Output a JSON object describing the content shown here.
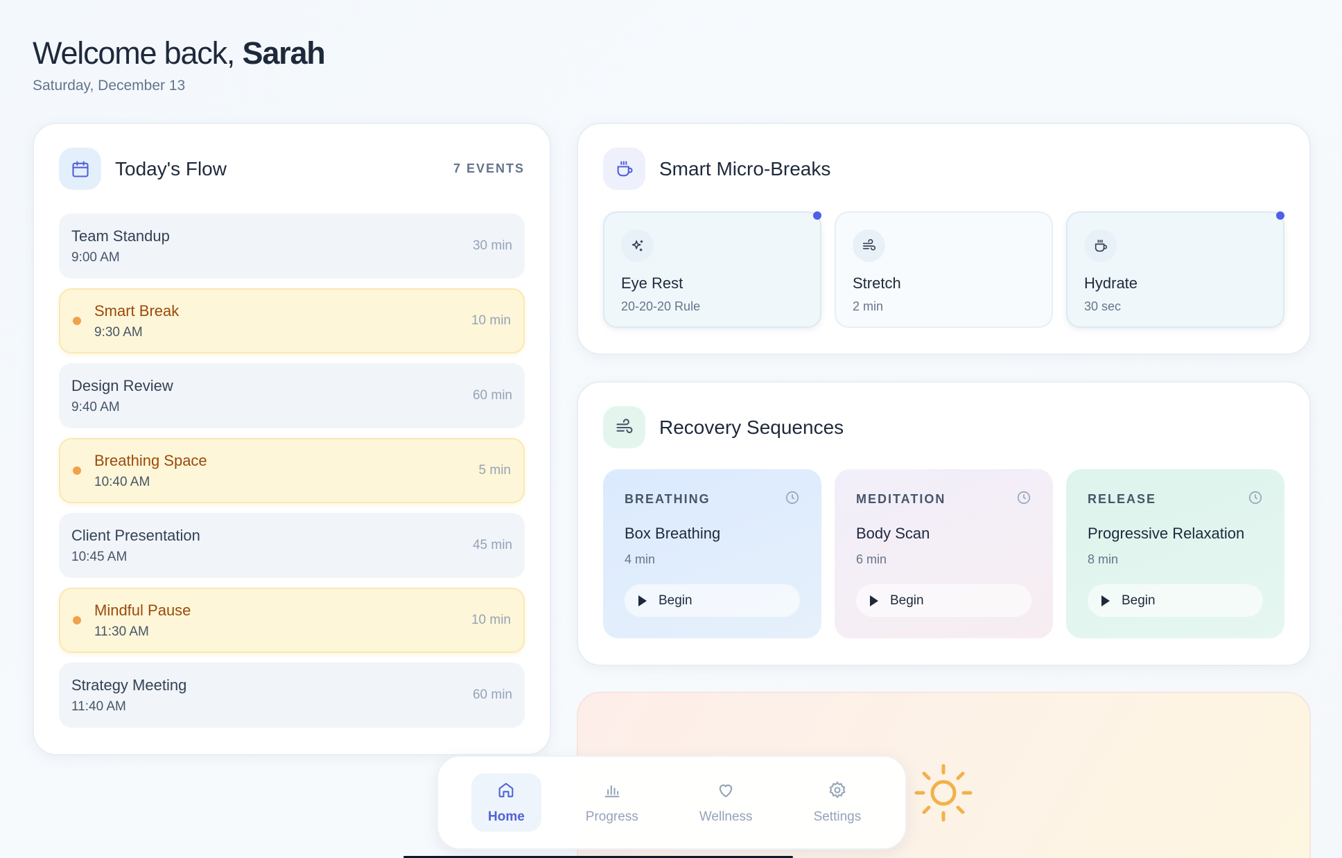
{
  "header": {
    "greeting": "Welcome back,",
    "name": "Sarah",
    "date": "Saturday, December 13"
  },
  "flow": {
    "title": "Today's Flow",
    "count": "7 EVENTS",
    "events": [
      {
        "name": "Team Standup",
        "time": "9:00 AM",
        "duration": "30 min",
        "kind": "meeting"
      },
      {
        "name": "Smart Break",
        "time": "9:30 AM",
        "duration": "10 min",
        "kind": "break"
      },
      {
        "name": "Design Review",
        "time": "9:40 AM",
        "duration": "60 min",
        "kind": "meeting"
      },
      {
        "name": "Breathing Space",
        "time": "10:40 AM",
        "duration": "5 min",
        "kind": "break"
      },
      {
        "name": "Client Presentation",
        "time": "10:45 AM",
        "duration": "45 min",
        "kind": "meeting"
      },
      {
        "name": "Mindful Pause",
        "time": "11:30 AM",
        "duration": "10 min",
        "kind": "break"
      },
      {
        "name": "Strategy Meeting",
        "time": "11:40 AM",
        "duration": "60 min",
        "kind": "meeting"
      }
    ]
  },
  "micro": {
    "title": "Smart Micro-Breaks",
    "tiles": [
      {
        "name": "Eye Rest",
        "sub": "20-20-20 Rule",
        "icon": "sparkles-icon",
        "indicator": true
      },
      {
        "name": "Stretch",
        "sub": "2 min",
        "icon": "wind-icon",
        "indicator": false
      },
      {
        "name": "Hydrate",
        "sub": "30 sec",
        "icon": "coffee-cup-icon",
        "indicator": true
      }
    ]
  },
  "recovery": {
    "title": "Recovery Sequences",
    "sequences": [
      {
        "category": "BREATHING",
        "name": "Box Breathing",
        "duration": "4 min",
        "action": "Begin"
      },
      {
        "category": "MEDITATION",
        "name": "Body Scan",
        "duration": "6 min",
        "action": "Begin"
      },
      {
        "category": "RELEASE",
        "name": "Progressive Relaxation",
        "duration": "8 min",
        "action": "Begin"
      }
    ]
  },
  "nav": {
    "items": [
      {
        "label": "Home",
        "icon": "home-icon",
        "active": true
      },
      {
        "label": "Progress",
        "icon": "bar-chart-icon",
        "active": false
      },
      {
        "label": "Wellness",
        "icon": "heart-icon",
        "active": false
      },
      {
        "label": "Settings",
        "icon": "gear-icon",
        "active": false
      }
    ]
  },
  "colors": {
    "accent": "#4f62d8",
    "break": "#f0a24a",
    "sun": "#f0b24a"
  }
}
